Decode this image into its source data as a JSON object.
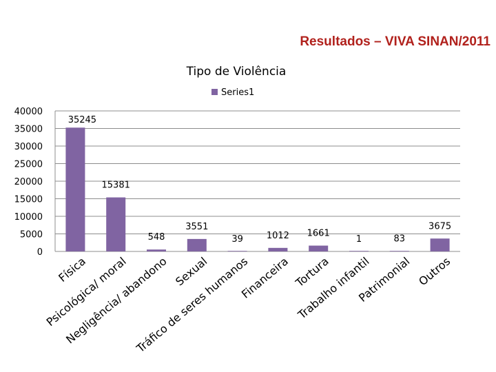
{
  "slide": {
    "title": "Resultados – VIVA SINAN/2011"
  },
  "chart_data": {
    "type": "bar",
    "title": "Tipo de Violência",
    "categories": [
      "Física",
      "Psicológica/ moral",
      "Negligência/ abandono",
      "Sexual",
      "Tráfico de seres humanos",
      "Financeira",
      "Tortura",
      "Trabalho infantil",
      "Patrimonial",
      "Outros"
    ],
    "series": [
      {
        "name": "Series1",
        "values": [
          35245,
          15381,
          548,
          3551,
          39,
          1012,
          1661,
          1,
          83,
          3675
        ],
        "data_labels": [
          "35245",
          "15381",
          "548",
          "3551",
          "39",
          "1012",
          "1661",
          "1",
          "83",
          "3675"
        ]
      }
    ],
    "ylim": [
      0,
      40000
    ],
    "yticks": [
      "0",
      "5000",
      "10000",
      "15000",
      "20000",
      "25000",
      "30000",
      "35000",
      "40000"
    ],
    "xlabel": "",
    "ylabel": "",
    "grid": true,
    "legend": "top",
    "colors": {
      "bar": "#8064a2",
      "grid": "#8c8c8c",
      "title": "#b1211c"
    }
  }
}
